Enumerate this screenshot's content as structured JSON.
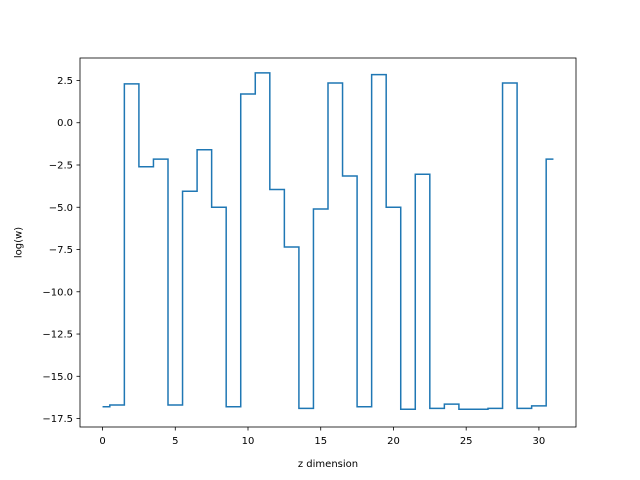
{
  "chart_data": {
    "type": "line",
    "step": "mid",
    "title": "",
    "xlabel": "z dimension",
    "ylabel": "log(w)",
    "xlim": [
      -1.55,
      32.55
    ],
    "ylim": [
      -18.0,
      3.83
    ],
    "xticks": [
      0,
      5,
      10,
      15,
      20,
      25,
      30
    ],
    "xtick_labels": [
      "0",
      "5",
      "10",
      "15",
      "20",
      "25",
      "30"
    ],
    "yticks": [
      2.5,
      0.0,
      -2.5,
      -5.0,
      -7.5,
      -10.0,
      -12.5,
      -15.0,
      -17.5
    ],
    "ytick_labels": [
      "2.5",
      "0.0",
      "−2.5",
      "−5.0",
      "−7.5",
      "−10.0",
      "−12.5",
      "−15.0",
      "−17.5"
    ],
    "grid": false,
    "series": [
      {
        "color": "#1f77b4",
        "x": [
          0,
          1,
          2,
          3,
          4,
          5,
          6,
          7,
          8,
          9,
          10,
          11,
          12,
          13,
          14,
          15,
          16,
          17,
          18,
          19,
          20,
          21,
          22,
          23,
          24,
          25,
          26,
          27,
          28,
          29,
          30,
          31
        ],
        "y": [
          -16.8,
          -16.7,
          2.3,
          -2.6,
          -2.15,
          -16.7,
          -4.05,
          -1.6,
          -5.0,
          -16.8,
          1.7,
          2.95,
          -3.95,
          -7.35,
          -16.9,
          -5.1,
          2.35,
          -3.15,
          -16.8,
          2.85,
          -5.0,
          -16.95,
          -3.05,
          -16.9,
          -16.65,
          -16.95,
          -16.95,
          -16.9,
          2.35,
          -16.9,
          -16.75,
          -2.15
        ]
      }
    ]
  }
}
